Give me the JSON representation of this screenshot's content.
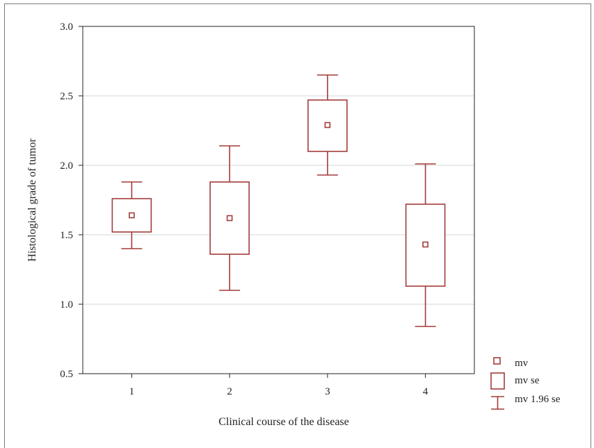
{
  "chart_data": {
    "type": "box",
    "title": "",
    "xlabel": "Clinical  course of the disease",
    "ylabel": "Histological  grade of tumor",
    "ylim": [
      0.5,
      3.0
    ],
    "yticks": [
      0.5,
      1.0,
      1.5,
      2.0,
      2.5,
      3.0
    ],
    "ytick_labels": [
      "0.5",
      "1.0",
      "1.5",
      "2.0",
      "2.5",
      "3.0"
    ],
    "categories": [
      "1",
      "2",
      "3",
      "4"
    ],
    "grid": "horizontal",
    "color": "#a33a3a",
    "boxes": [
      {
        "category": "1",
        "mean": 1.64,
        "se_low": 1.52,
        "se_high": 1.76,
        "ci_low": 1.4,
        "ci_high": 1.88
      },
      {
        "category": "2",
        "mean": 1.62,
        "se_low": 1.36,
        "se_high": 1.88,
        "ci_low": 1.1,
        "ci_high": 2.14
      },
      {
        "category": "3",
        "mean": 2.29,
        "se_low": 2.1,
        "se_high": 2.47,
        "ci_low": 1.93,
        "ci_high": 2.65
      },
      {
        "category": "4",
        "mean": 1.43,
        "se_low": 1.13,
        "se_high": 1.72,
        "ci_low": 0.84,
        "ci_high": 2.01
      }
    ],
    "legend": {
      "position": "bottom-right",
      "entries": [
        "mv",
        "mv se",
        "mv 1.96 se"
      ]
    }
  }
}
